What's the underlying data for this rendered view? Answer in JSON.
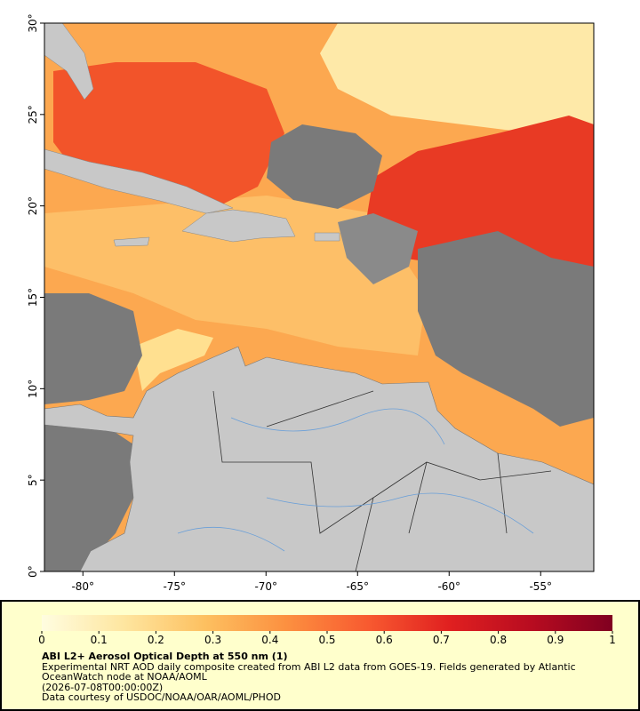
{
  "map": {
    "xlim": [
      -82.1,
      -52.1
    ],
    "ylim": [
      0,
      30
    ],
    "xticks": [
      {
        "value": -80,
        "label": "-80°"
      },
      {
        "value": -75,
        "label": "-75°"
      },
      {
        "value": -70,
        "label": "-70°"
      },
      {
        "value": -65,
        "label": "-65°"
      },
      {
        "value": -60,
        "label": "-60°"
      },
      {
        "value": -55,
        "label": "-55°"
      }
    ],
    "yticks": [
      {
        "value": 0,
        "label": "0°"
      },
      {
        "value": 5,
        "label": "5°"
      },
      {
        "value": 10,
        "label": "10°"
      },
      {
        "value": 15,
        "label": "15°"
      },
      {
        "value": 20,
        "label": "20°"
      },
      {
        "value": 25,
        "label": "25°"
      },
      {
        "value": 30,
        "label": "30°"
      }
    ]
  },
  "colorbar": {
    "lim": [
      0,
      1
    ],
    "ticks": [
      0,
      0.1,
      0.2,
      0.3,
      0.4,
      0.5,
      0.6,
      0.7,
      0.8,
      0.9,
      1
    ],
    "colors": [
      "#fffde0",
      "#fee6a0",
      "#fdc060",
      "#fc9040",
      "#f85a30",
      "#e02020",
      "#b80c20",
      "#800020"
    ]
  },
  "footer": {
    "title": "ABI L2+ Aerosol Optical Depth at 550 nm (1)",
    "description": "Experimental NRT AOD daily composite created from ABI L2 data from GOES-19. Fields generated by Atlantic OceanWatch node at NOAA/AOML",
    "timestamp": "(2026-07-08T00:00:00Z)",
    "credit": "Data courtesy of USDOC/NOAA/OAR/AOML/PHOD"
  }
}
